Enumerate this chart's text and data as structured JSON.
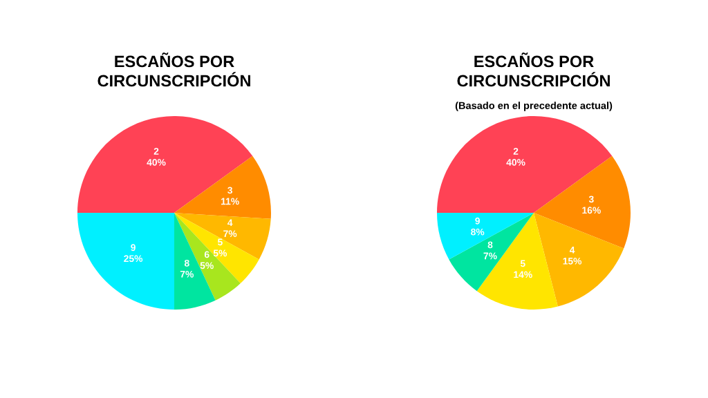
{
  "chart_data": [
    {
      "type": "pie",
      "title": "ESCAÑOS POR\nCIRCUNSCRIPCIÓN",
      "categories": [
        "2",
        "3",
        "4",
        "5",
        "6",
        "8",
        "9"
      ],
      "values": [
        40,
        11,
        7,
        5,
        5,
        7,
        25
      ],
      "value_labels": [
        "40%",
        "11%",
        "7%",
        "5%",
        "5%",
        "7%",
        "25%"
      ],
      "colors": [
        "#ff4255",
        "#ff8c00",
        "#ffb800",
        "#ffe500",
        "#a8e61e",
        "#00e5a0",
        "#00f0ff"
      ]
    },
    {
      "type": "pie",
      "title": "ESCAÑOS POR\nCIRCUNSCRIPCIÓN",
      "subtitle": "(Basado en el precedente actual)",
      "categories": [
        "2",
        "3",
        "4",
        "5",
        "8",
        "9"
      ],
      "values": [
        40,
        16,
        15,
        14,
        7,
        8
      ],
      "value_labels": [
        "40%",
        "16%",
        "15%",
        "14%",
        "7%",
        "8%"
      ],
      "colors": [
        "#ff4255",
        "#ff8c00",
        "#ffb800",
        "#ffe500",
        "#00e5a0",
        "#00f0ff"
      ]
    }
  ]
}
